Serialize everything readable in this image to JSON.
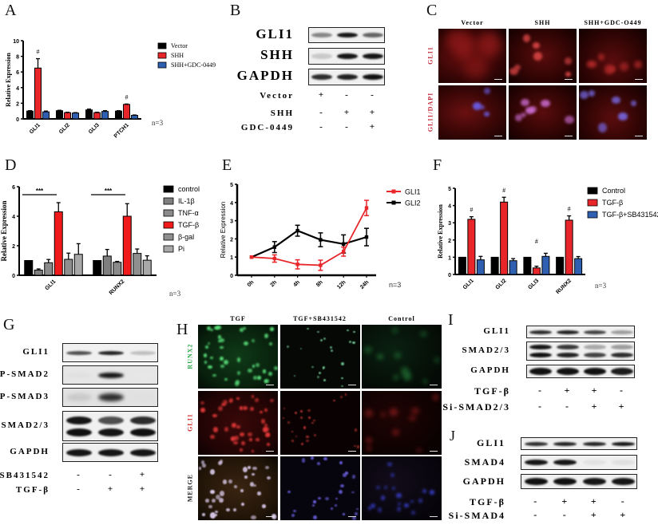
{
  "panels": {
    "A": {
      "label": "A",
      "n": "n=3"
    },
    "B": {
      "label": "B"
    },
    "C": {
      "label": "C"
    },
    "D": {
      "label": "D",
      "n": "n=3",
      "sig": "***"
    },
    "E": {
      "label": "E",
      "n": "n=3"
    },
    "F": {
      "label": "F",
      "n": "n=3",
      "sig": "#"
    },
    "G": {
      "label": "G"
    },
    "H": {
      "label": "H"
    },
    "I": {
      "label": "I"
    },
    "J": {
      "label": "J"
    }
  },
  "chart_data": [
    {
      "panel": "A",
      "type": "bar",
      "title": "",
      "xlabel": "",
      "ylabel": "Relative Expression",
      "ylim": [
        0,
        10
      ],
      "yticks": [
        0,
        2,
        4,
        6,
        8,
        10
      ],
      "categories": [
        "GLI1",
        "GLI2",
        "GLI3",
        "PTCH1"
      ],
      "series": [
        {
          "name": "Vector",
          "color": "#000000",
          "values": [
            1.0,
            1.05,
            1.15,
            1.0
          ],
          "errors": [
            0.05,
            0.05,
            0.1,
            0.05
          ]
        },
        {
          "name": "SHH",
          "color": "#e8262a",
          "values": [
            6.5,
            0.8,
            0.8,
            1.85
          ],
          "errors": [
            1.2,
            0.05,
            0.05,
            0.05
          ]
        },
        {
          "name": "SHH+GDC-0449",
          "color": "#2f5fb0",
          "values": [
            0.9,
            0.75,
            0.95,
            0.45
          ],
          "errors": [
            0.1,
            0.05,
            0.1,
            0.05
          ]
        }
      ],
      "annotations": [
        {
          "category": "GLI1",
          "text": "#"
        },
        {
          "category": "PTCH1",
          "text": "#"
        }
      ],
      "legend_position": "right",
      "grid": false
    },
    {
      "panel": "D",
      "type": "bar",
      "title": "",
      "xlabel": "",
      "ylabel": "Relative Expression",
      "ylim": [
        0,
        6
      ],
      "yticks": [
        0,
        2,
        4,
        6
      ],
      "categories": [
        "GLI1",
        "RUNX2"
      ],
      "series": [
        {
          "name": "control",
          "color": "#000000",
          "values": [
            1.0,
            1.0
          ],
          "errors": [
            0,
            0
          ]
        },
        {
          "name": "IL-1β",
          "color": "#7f7f7f",
          "values": [
            0.35,
            1.3
          ],
          "errors": [
            0.08,
            0.45
          ]
        },
        {
          "name": "TNF-α",
          "color": "#8a8a8a",
          "values": [
            0.85,
            0.88
          ],
          "errors": [
            0.22,
            0.06
          ]
        },
        {
          "name": "TGF-β",
          "color": "#f01a1a",
          "values": [
            4.3,
            4.0
          ],
          "errors": [
            0.62,
            0.85
          ]
        },
        {
          "name": "β-gal",
          "color": "#8f8f8f",
          "values": [
            1.08,
            1.48
          ],
          "errors": [
            0.42,
            0.3
          ]
        },
        {
          "name": "Pi",
          "color": "#a8a8a8",
          "values": [
            1.42,
            1.02
          ],
          "errors": [
            0.72,
            0.3
          ]
        }
      ],
      "annotations": [
        {
          "category": "GLI1",
          "text": "***"
        },
        {
          "category": "RUNX2",
          "text": "***"
        }
      ],
      "legend_position": "right",
      "grid": false
    },
    {
      "panel": "E",
      "type": "line",
      "title": "",
      "xlabel": "",
      "ylabel": "Relative Expression",
      "ylim": [
        0,
        5
      ],
      "yticks": [
        0,
        1,
        2,
        3,
        4,
        5
      ],
      "x": [
        "0h",
        "2h",
        "4h",
        "8h",
        "12h",
        "24h"
      ],
      "series": [
        {
          "name": "GLI1",
          "color": "#e8262a",
          "marker": "square",
          "values": [
            1.0,
            0.92,
            0.6,
            0.55,
            1.3,
            3.7
          ],
          "errors": [
            0.02,
            0.2,
            0.25,
            0.28,
            0.25,
            0.42
          ]
        },
        {
          "name": "GLI2",
          "color": "#000000",
          "marker": "triangle",
          "values": [
            1.0,
            1.55,
            2.45,
            1.95,
            1.72,
            2.1
          ],
          "errors": [
            0.02,
            0.3,
            0.3,
            0.38,
            0.5,
            0.48
          ]
        }
      ],
      "legend_position": "right",
      "grid": false
    },
    {
      "panel": "F",
      "type": "bar",
      "title": "",
      "xlabel": "",
      "ylabel": "Relative Expression",
      "ylim": [
        0,
        5
      ],
      "yticks": [
        0,
        1,
        2,
        3,
        4,
        5
      ],
      "categories": [
        "GLI1",
        "GLI2",
        "GLI3",
        "RUNX2"
      ],
      "series": [
        {
          "name": "Control",
          "color": "#000000",
          "values": [
            1.0,
            1.0,
            1.0,
            1.0
          ],
          "errors": [
            0,
            0,
            0,
            0
          ]
        },
        {
          "name": "TGF-β",
          "color": "#e8262a",
          "values": [
            3.2,
            4.2,
            0.38,
            3.15
          ],
          "errors": [
            0.15,
            0.28,
            0.1,
            0.25
          ]
        },
        {
          "name": "TGF-β+SB431542",
          "color": "#2f5fb0",
          "values": [
            0.85,
            0.8,
            1.05,
            0.92
          ],
          "errors": [
            0.2,
            0.12,
            0.18,
            0.12
          ]
        }
      ],
      "annotations": [
        {
          "category": "GLI1",
          "text": "#"
        },
        {
          "category": "GLI2",
          "text": "#"
        },
        {
          "category": "GLI3",
          "text": "#"
        },
        {
          "category": "RUNX2",
          "text": "#"
        }
      ],
      "legend_position": "right",
      "grid": false
    }
  ],
  "blots": {
    "B": {
      "rows": [
        "GLI1",
        "SHH",
        "GAPDH"
      ],
      "conditions": [
        {
          "name": "Vector",
          "signs": [
            "+",
            "-",
            "-"
          ]
        },
        {
          "name": "SHH",
          "signs": [
            "-",
            "+",
            "+"
          ]
        },
        {
          "name": "GDC-0449",
          "signs": [
            "-",
            "-",
            "+"
          ]
        }
      ]
    },
    "G": {
      "rows": [
        "GLI1",
        "P-SMAD2",
        "P-SMAD3",
        "SMAD2/3",
        "GAPDH"
      ],
      "conditions": [
        {
          "name": "SB431542",
          "signs": [
            "-",
            "-",
            "+"
          ]
        },
        {
          "name": "TGF-β",
          "signs": [
            "-",
            "+",
            "+"
          ]
        }
      ]
    },
    "I": {
      "rows": [
        "GLI1",
        "SMAD2/3",
        "GAPDH"
      ],
      "conditions": [
        {
          "name": "TGF-β",
          "signs": [
            "-",
            "+",
            "+",
            "-"
          ]
        },
        {
          "name": "Si-SMAD2/3",
          "signs": [
            "-",
            "-",
            "+",
            "+"
          ]
        }
      ]
    },
    "J": {
      "rows": [
        "GLI1",
        "SMAD4",
        "GAPDH"
      ],
      "conditions": [
        {
          "name": "TGF-β",
          "signs": [
            "-",
            "+",
            "+",
            "-"
          ]
        },
        {
          "name": "Si-SMAD4",
          "signs": [
            "-",
            "-",
            "+",
            "+"
          ]
        }
      ]
    }
  },
  "microscopy": {
    "C": {
      "columns": [
        "Vector",
        "SHH",
        "SHH+GDC-O449"
      ],
      "rows": [
        "GLI1",
        "GLI1/DAPI"
      ]
    },
    "H": {
      "columns": [
        "TGF",
        "TGF+SB431542",
        "Control"
      ],
      "rows": [
        "RUNX2",
        "GLI1",
        "MERGE"
      ]
    }
  }
}
